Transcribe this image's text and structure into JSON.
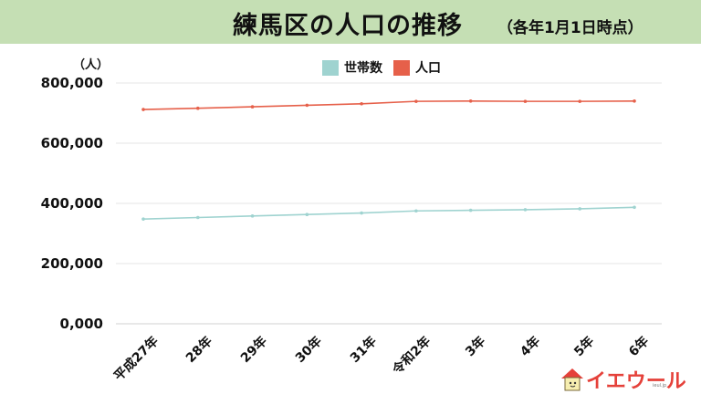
{
  "header": {
    "title": "練馬区の人口の推移",
    "subtitle": "（各年1月1日時点）",
    "background": "#c5dfb4"
  },
  "axis": {
    "unit": "（人）",
    "y_ticks": [
      "800,000",
      "600,000",
      "400,000",
      "200,000",
      "0,000"
    ],
    "x_ticks": [
      "平成27年",
      "28年",
      "29年",
      "30年",
      "31年",
      "令和2年",
      "3年",
      "4年",
      "5年",
      "6年"
    ]
  },
  "legend": {
    "items": [
      {
        "label": "世帯数",
        "color": "#9fd3d0"
      },
      {
        "label": "人口",
        "color": "#e6604a"
      }
    ]
  },
  "logo": {
    "text": "イエウール",
    "sub": "ieul.jp"
  },
  "chart_data": {
    "type": "line",
    "title": "練馬区の人口の推移",
    "subtitle": "（各年1月1日時点）",
    "xlabel": "",
    "ylabel": "（人）",
    "categories": [
      "平成27年",
      "28年",
      "29年",
      "30年",
      "31年",
      "令和2年",
      "3年",
      "4年",
      "5年",
      "6年"
    ],
    "series": [
      {
        "name": "世帯数",
        "color": "#9fd3d0",
        "values": [
          348000,
          353000,
          358000,
          363000,
          368000,
          375000,
          377000,
          379000,
          382000,
          387000
        ]
      },
      {
        "name": "人口",
        "color": "#e6604a",
        "values": [
          712000,
          716000,
          721000,
          726000,
          731000,
          739000,
          740000,
          739000,
          739000,
          740000
        ]
      }
    ],
    "ylim": [
      0,
      800000
    ],
    "y_ticks": [
      0,
      200000,
      400000,
      600000,
      800000
    ],
    "grid": true,
    "legend_position": "top-center"
  }
}
